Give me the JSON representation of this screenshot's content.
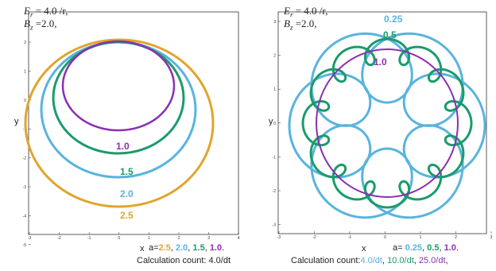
{
  "colors": {
    "c2_5": "#E0A52C",
    "c2_0": "#58B4DE",
    "c1_5": "#1A9B6B",
    "c1_0": "#8B2FB0",
    "c0_25": "#58B4DE",
    "c0_5": "#1A9B6B",
    "axis": "#333333"
  },
  "left": {
    "er_label": "E",
    "er_sub": "r",
    "er_value": " = 4.0 /r,",
    "bz_label": "B",
    "bz_sub": "z",
    "bz_value": " =2.0,",
    "xlabel": "x",
    "ylabel": "y",
    "xticks": [
      "-3",
      "-2",
      "-1",
      "0",
      "1",
      "2",
      "3",
      "4"
    ],
    "yticks": [
      "2",
      "1",
      "0",
      "-1",
      "-2",
      "-3",
      "-4",
      "-5"
    ],
    "curve_labels": [
      "1.0",
      "1.5",
      "2.0",
      "2.5"
    ],
    "caption_prefix": "a=",
    "caption_values": [
      "2.5",
      "2.0",
      "1.5",
      "1.0"
    ],
    "count_text": "Calculation count: 4.0/dt"
  },
  "right": {
    "er_label": "E",
    "er_sub": "r",
    "er_value": " = 4.0 /r,",
    "bz_label": "B",
    "bz_sub": "z",
    "bz_value": " =2.0,",
    "xlabel": "x",
    "ylabel": "y",
    "xticks": [
      "-3",
      "-2",
      "-1",
      "0",
      "1",
      "2",
      "3"
    ],
    "yticks": [
      "3",
      "2",
      "1",
      "0",
      "-1",
      "-2",
      "-3"
    ],
    "curve_labels": [
      "0.25",
      "0.5",
      "1.0"
    ],
    "caption_prefix": "a=",
    "caption_values": [
      "0.25",
      "0.5",
      "1.0"
    ],
    "count_prefix": "Calculation count:",
    "count_values": [
      "4.0/dt",
      "10.0/dt",
      "25.0/dt"
    ],
    "count_suffix": ","
  }
}
